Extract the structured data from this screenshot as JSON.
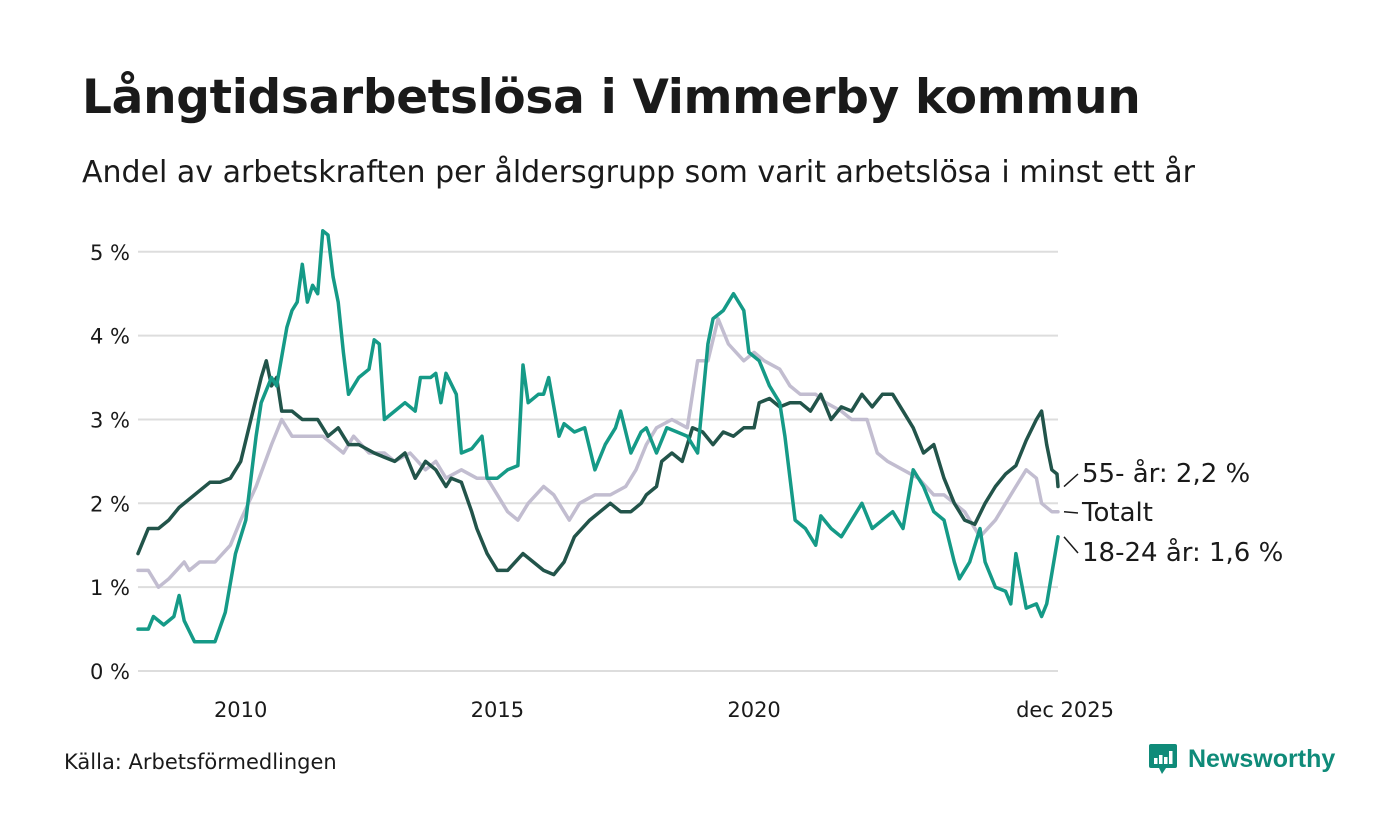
{
  "header": {
    "title": "Långtidsarbetslösa i Vimmerby kommun",
    "subtitle": "Andel av arbetskraften per åldersgrupp som varit arbetslösa i minst ett år"
  },
  "footer": {
    "source": "Källa: Arbetsförmedlingen",
    "brand": "Newsworthy",
    "brand_icon": "newsworthy-logo-icon"
  },
  "colors": {
    "series_18_24": "#159a87",
    "series_55": "#22544a",
    "series_total": "#c2bdd0",
    "grid": "#dddddd",
    "text": "#1a1a1a",
    "brand": "#0f8b79"
  },
  "chart_data": {
    "type": "line",
    "title": "Långtidsarbetslösa i Vimmerby kommun",
    "xlabel": "",
    "ylabel": "",
    "xlim": [
      2008.0,
      2025.92
    ],
    "ylim": [
      0,
      5.2
    ],
    "grid": true,
    "y_ticks": [
      {
        "value": 0,
        "label": "0 %"
      },
      {
        "value": 1,
        "label": "1 %"
      },
      {
        "value": 2,
        "label": "2 %"
      },
      {
        "value": 3,
        "label": "3 %"
      },
      {
        "value": 4,
        "label": "4 %"
      },
      {
        "value": 5,
        "label": "5 %"
      }
    ],
    "x_ticks": [
      {
        "value": 2010,
        "label": "2010"
      },
      {
        "value": 2015,
        "label": "2015"
      },
      {
        "value": 2020,
        "label": "2020"
      },
      {
        "value": 2025.92,
        "label": "dec 2025"
      }
    ],
    "series": [
      {
        "name": "Totalt",
        "label": "Totalt",
        "color": "#c2bdd0",
        "points": [
          [
            2008.0,
            1.2
          ],
          [
            2008.2,
            1.2
          ],
          [
            2008.4,
            1.0
          ],
          [
            2008.6,
            1.1
          ],
          [
            2008.9,
            1.3
          ],
          [
            2009.0,
            1.2
          ],
          [
            2009.2,
            1.3
          ],
          [
            2009.5,
            1.3
          ],
          [
            2009.8,
            1.5
          ],
          [
            2010.0,
            1.8
          ],
          [
            2010.3,
            2.2
          ],
          [
            2010.6,
            2.7
          ],
          [
            2010.8,
            3.0
          ],
          [
            2011.0,
            2.8
          ],
          [
            2011.3,
            2.8
          ],
          [
            2011.6,
            2.8
          ],
          [
            2011.8,
            2.7
          ],
          [
            2012.0,
            2.6
          ],
          [
            2012.2,
            2.8
          ],
          [
            2012.5,
            2.6
          ],
          [
            2012.8,
            2.6
          ],
          [
            2013.0,
            2.5
          ],
          [
            2013.3,
            2.6
          ],
          [
            2013.6,
            2.4
          ],
          [
            2013.8,
            2.5
          ],
          [
            2014.0,
            2.3
          ],
          [
            2014.3,
            2.4
          ],
          [
            2014.6,
            2.3
          ],
          [
            2014.8,
            2.3
          ],
          [
            2015.0,
            2.1
          ],
          [
            2015.2,
            1.9
          ],
          [
            2015.4,
            1.8
          ],
          [
            2015.6,
            2.0
          ],
          [
            2015.9,
            2.2
          ],
          [
            2016.1,
            2.1
          ],
          [
            2016.4,
            1.8
          ],
          [
            2016.6,
            2.0
          ],
          [
            2016.9,
            2.1
          ],
          [
            2017.2,
            2.1
          ],
          [
            2017.5,
            2.2
          ],
          [
            2017.7,
            2.4
          ],
          [
            2017.9,
            2.7
          ],
          [
            2018.1,
            2.9
          ],
          [
            2018.4,
            3.0
          ],
          [
            2018.7,
            2.9
          ],
          [
            2018.9,
            3.7
          ],
          [
            2019.1,
            3.7
          ],
          [
            2019.3,
            4.2
          ],
          [
            2019.5,
            3.9
          ],
          [
            2019.8,
            3.7
          ],
          [
            2020.0,
            3.8
          ],
          [
            2020.2,
            3.7
          ],
          [
            2020.5,
            3.6
          ],
          [
            2020.7,
            3.4
          ],
          [
            2020.9,
            3.3
          ],
          [
            2021.2,
            3.3
          ],
          [
            2021.4,
            3.2
          ],
          [
            2021.7,
            3.1
          ],
          [
            2021.9,
            3.0
          ],
          [
            2022.2,
            3.0
          ],
          [
            2022.4,
            2.6
          ],
          [
            2022.6,
            2.5
          ],
          [
            2022.9,
            2.4
          ],
          [
            2023.2,
            2.3
          ],
          [
            2023.5,
            2.1
          ],
          [
            2023.7,
            2.1
          ],
          [
            2023.9,
            2.0
          ],
          [
            2024.1,
            1.9
          ],
          [
            2024.4,
            1.6
          ],
          [
            2024.7,
            1.8
          ],
          [
            2024.9,
            2.0
          ],
          [
            2025.1,
            2.2
          ],
          [
            2025.3,
            2.4
          ],
          [
            2025.5,
            2.3
          ],
          [
            2025.6,
            2.0
          ],
          [
            2025.8,
            1.9
          ],
          [
            2025.92,
            1.9
          ]
        ],
        "end_value": 1.9
      },
      {
        "name": "55- år",
        "label": "55- år: 2,2 %",
        "color": "#22544a",
        "points": [
          [
            2008.0,
            1.4
          ],
          [
            2008.2,
            1.7
          ],
          [
            2008.4,
            1.7
          ],
          [
            2008.6,
            1.8
          ],
          [
            2008.8,
            1.95
          ],
          [
            2009.0,
            2.05
          ],
          [
            2009.2,
            2.15
          ],
          [
            2009.4,
            2.25
          ],
          [
            2009.6,
            2.25
          ],
          [
            2009.8,
            2.3
          ],
          [
            2010.0,
            2.5
          ],
          [
            2010.2,
            3.0
          ],
          [
            2010.4,
            3.5
          ],
          [
            2010.5,
            3.7
          ],
          [
            2010.6,
            3.4
          ],
          [
            2010.7,
            3.5
          ],
          [
            2010.8,
            3.1
          ],
          [
            2011.0,
            3.1
          ],
          [
            2011.2,
            3.0
          ],
          [
            2011.5,
            3.0
          ],
          [
            2011.7,
            2.8
          ],
          [
            2011.9,
            2.9
          ],
          [
            2012.1,
            2.7
          ],
          [
            2012.3,
            2.7
          ],
          [
            2012.6,
            2.6
          ],
          [
            2012.8,
            2.55
          ],
          [
            2013.0,
            2.5
          ],
          [
            2013.2,
            2.6
          ],
          [
            2013.4,
            2.3
          ],
          [
            2013.6,
            2.5
          ],
          [
            2013.8,
            2.4
          ],
          [
            2014.0,
            2.2
          ],
          [
            2014.1,
            2.3
          ],
          [
            2014.3,
            2.25
          ],
          [
            2014.5,
            1.9
          ],
          [
            2014.6,
            1.7
          ],
          [
            2014.8,
            1.4
          ],
          [
            2015.0,
            1.2
          ],
          [
            2015.2,
            1.2
          ],
          [
            2015.5,
            1.4
          ],
          [
            2015.7,
            1.3
          ],
          [
            2015.9,
            1.2
          ],
          [
            2016.1,
            1.15
          ],
          [
            2016.3,
            1.3
          ],
          [
            2016.5,
            1.6
          ],
          [
            2016.8,
            1.8
          ],
          [
            2017.0,
            1.9
          ],
          [
            2017.2,
            2.0
          ],
          [
            2017.4,
            1.9
          ],
          [
            2017.6,
            1.9
          ],
          [
            2017.8,
            2.0
          ],
          [
            2017.9,
            2.1
          ],
          [
            2018.1,
            2.2
          ],
          [
            2018.2,
            2.5
          ],
          [
            2018.4,
            2.6
          ],
          [
            2018.6,
            2.5
          ],
          [
            2018.8,
            2.9
          ],
          [
            2019.0,
            2.85
          ],
          [
            2019.2,
            2.7
          ],
          [
            2019.4,
            2.85
          ],
          [
            2019.6,
            2.8
          ],
          [
            2019.8,
            2.9
          ],
          [
            2020.0,
            2.9
          ],
          [
            2020.1,
            3.2
          ],
          [
            2020.3,
            3.25
          ],
          [
            2020.5,
            3.15
          ],
          [
            2020.7,
            3.2
          ],
          [
            2020.9,
            3.2
          ],
          [
            2021.1,
            3.1
          ],
          [
            2021.3,
            3.3
          ],
          [
            2021.5,
            3.0
          ],
          [
            2021.7,
            3.15
          ],
          [
            2021.9,
            3.1
          ],
          [
            2022.1,
            3.3
          ],
          [
            2022.3,
            3.15
          ],
          [
            2022.5,
            3.3
          ],
          [
            2022.7,
            3.3
          ],
          [
            2022.9,
            3.1
          ],
          [
            2023.1,
            2.9
          ],
          [
            2023.3,
            2.6
          ],
          [
            2023.5,
            2.7
          ],
          [
            2023.7,
            2.3
          ],
          [
            2023.9,
            2.0
          ],
          [
            2024.1,
            1.8
          ],
          [
            2024.3,
            1.75
          ],
          [
            2024.5,
            2.0
          ],
          [
            2024.7,
            2.2
          ],
          [
            2024.9,
            2.35
          ],
          [
            2025.1,
            2.45
          ],
          [
            2025.3,
            2.75
          ],
          [
            2025.5,
            3.0
          ],
          [
            2025.6,
            3.1
          ],
          [
            2025.7,
            2.7
          ],
          [
            2025.8,
            2.4
          ],
          [
            2025.9,
            2.35
          ],
          [
            2025.92,
            2.2
          ]
        ],
        "end_value": 2.2
      },
      {
        "name": "18-24 år",
        "label": "18-24 år: 1,6 %",
        "color": "#159a87",
        "points": [
          [
            2008.0,
            0.5
          ],
          [
            2008.2,
            0.5
          ],
          [
            2008.3,
            0.65
          ],
          [
            2008.5,
            0.55
          ],
          [
            2008.7,
            0.65
          ],
          [
            2008.8,
            0.9
          ],
          [
            2008.9,
            0.6
          ],
          [
            2009.1,
            0.35
          ],
          [
            2009.3,
            0.35
          ],
          [
            2009.5,
            0.35
          ],
          [
            2009.7,
            0.7
          ],
          [
            2009.9,
            1.4
          ],
          [
            2010.1,
            1.8
          ],
          [
            2010.3,
            2.8
          ],
          [
            2010.4,
            3.2
          ],
          [
            2010.6,
            3.5
          ],
          [
            2010.7,
            3.4
          ],
          [
            2010.9,
            4.1
          ],
          [
            2011.0,
            4.3
          ],
          [
            2011.1,
            4.4
          ],
          [
            2011.2,
            4.85
          ],
          [
            2011.3,
            4.4
          ],
          [
            2011.4,
            4.6
          ],
          [
            2011.5,
            4.5
          ],
          [
            2011.6,
            5.25
          ],
          [
            2011.7,
            5.2
          ],
          [
            2011.8,
            4.7
          ],
          [
            2011.9,
            4.4
          ],
          [
            2012.0,
            3.8
          ],
          [
            2012.1,
            3.3
          ],
          [
            2012.3,
            3.5
          ],
          [
            2012.5,
            3.6
          ],
          [
            2012.6,
            3.95
          ],
          [
            2012.7,
            3.9
          ],
          [
            2012.8,
            3.0
          ],
          [
            2013.0,
            3.1
          ],
          [
            2013.2,
            3.2
          ],
          [
            2013.4,
            3.1
          ],
          [
            2013.5,
            3.5
          ],
          [
            2013.7,
            3.5
          ],
          [
            2013.8,
            3.55
          ],
          [
            2013.9,
            3.2
          ],
          [
            2014.0,
            3.55
          ],
          [
            2014.2,
            3.3
          ],
          [
            2014.3,
            2.6
          ],
          [
            2014.5,
            2.65
          ],
          [
            2014.7,
            2.8
          ],
          [
            2014.8,
            2.3
          ],
          [
            2015.0,
            2.3
          ],
          [
            2015.2,
            2.4
          ],
          [
            2015.4,
            2.45
          ],
          [
            2015.5,
            3.65
          ],
          [
            2015.6,
            3.2
          ],
          [
            2015.8,
            3.3
          ],
          [
            2015.9,
            3.3
          ],
          [
            2016.0,
            3.5
          ],
          [
            2016.2,
            2.8
          ],
          [
            2016.3,
            2.95
          ],
          [
            2016.5,
            2.85
          ],
          [
            2016.7,
            2.9
          ],
          [
            2016.9,
            2.4
          ],
          [
            2017.1,
            2.7
          ],
          [
            2017.3,
            2.9
          ],
          [
            2017.4,
            3.1
          ],
          [
            2017.6,
            2.6
          ],
          [
            2017.8,
            2.85
          ],
          [
            2017.9,
            2.9
          ],
          [
            2018.1,
            2.6
          ],
          [
            2018.3,
            2.9
          ],
          [
            2018.5,
            2.85
          ],
          [
            2018.7,
            2.8
          ],
          [
            2018.9,
            2.6
          ],
          [
            2019.1,
            3.9
          ],
          [
            2019.2,
            4.2
          ],
          [
            2019.4,
            4.3
          ],
          [
            2019.6,
            4.5
          ],
          [
            2019.8,
            4.3
          ],
          [
            2019.9,
            3.8
          ],
          [
            2020.1,
            3.7
          ],
          [
            2020.3,
            3.4
          ],
          [
            2020.5,
            3.2
          ],
          [
            2020.6,
            2.8
          ],
          [
            2020.7,
            2.3
          ],
          [
            2020.8,
            1.8
          ],
          [
            2021.0,
            1.7
          ],
          [
            2021.2,
            1.5
          ],
          [
            2021.3,
            1.85
          ],
          [
            2021.5,
            1.7
          ],
          [
            2021.7,
            1.6
          ],
          [
            2021.9,
            1.8
          ],
          [
            2022.1,
            2.0
          ],
          [
            2022.3,
            1.7
          ],
          [
            2022.5,
            1.8
          ],
          [
            2022.7,
            1.9
          ],
          [
            2022.9,
            1.7
          ],
          [
            2023.1,
            2.4
          ],
          [
            2023.3,
            2.2
          ],
          [
            2023.5,
            1.9
          ],
          [
            2023.7,
            1.8
          ],
          [
            2023.9,
            1.3
          ],
          [
            2024.0,
            1.1
          ],
          [
            2024.2,
            1.3
          ],
          [
            2024.4,
            1.7
          ],
          [
            2024.5,
            1.3
          ],
          [
            2024.7,
            1.0
          ],
          [
            2024.9,
            0.95
          ],
          [
            2025.0,
            0.8
          ],
          [
            2025.1,
            1.4
          ],
          [
            2025.3,
            0.75
          ],
          [
            2025.5,
            0.8
          ],
          [
            2025.6,
            0.65
          ],
          [
            2025.7,
            0.8
          ],
          [
            2025.92,
            1.6
          ]
        ],
        "end_value": 1.6
      }
    ]
  }
}
